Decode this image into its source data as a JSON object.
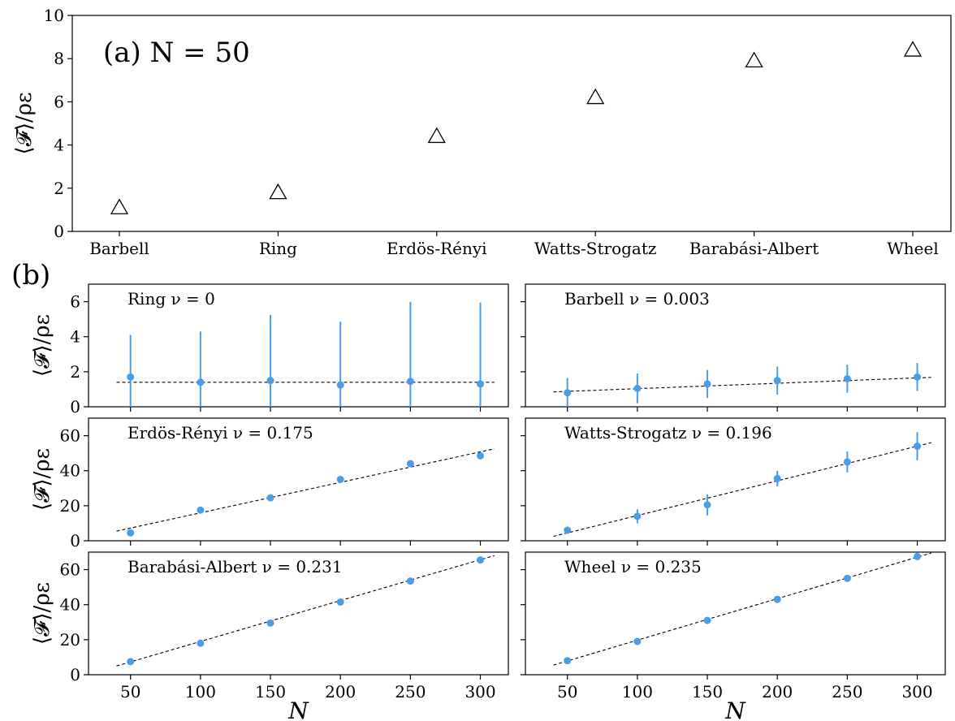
{
  "figure": {
    "panel_b_label": "(b)"
  },
  "chart_data": [
    {
      "id": "a",
      "type": "scatter",
      "annotation": "(a) N = 50",
      "categories": [
        "Barbell",
        "Ring",
        "Erdös-Rényi",
        "Watts-Strogatz",
        "Barabási-Albert",
        "Wheel"
      ],
      "values": [
        1.1,
        1.8,
        4.4,
        6.2,
        7.9,
        8.4
      ],
      "ylabel": "⟨𝓕⟩/ρε",
      "ylim": [
        0,
        10
      ],
      "yticks": [
        0,
        2,
        4,
        6,
        8,
        10
      ],
      "marker": "open-triangle",
      "color": "#000000"
    },
    {
      "id": "b1",
      "type": "scatter",
      "annotation": "Ring ν = 0",
      "x": [
        50,
        100,
        150,
        200,
        250,
        300
      ],
      "y": [
        1.7,
        1.4,
        1.5,
        1.25,
        1.45,
        1.3
      ],
      "yerr": [
        2.4,
        2.9,
        3.75,
        3.6,
        4.55,
        4.65
      ],
      "fit": {
        "x": [
          40,
          310
        ],
        "y": [
          1.4,
          1.4
        ]
      },
      "ylabel": "⟨𝓕⟩/ρε",
      "ylim": [
        0,
        7
      ],
      "yticks": [
        0,
        2,
        4,
        6
      ],
      "xlim": [
        20,
        320
      ],
      "xticks": [
        50,
        100,
        150,
        200,
        250,
        300
      ],
      "color": "#4a9de8"
    },
    {
      "id": "b2",
      "type": "scatter",
      "annotation": "Barbell ν = 0.003",
      "x": [
        50,
        100,
        150,
        200,
        250,
        300
      ],
      "y": [
        0.8,
        1.05,
        1.3,
        1.5,
        1.6,
        1.7
      ],
      "yerr": [
        0.85,
        0.85,
        0.8,
        0.8,
        0.8,
        0.8
      ],
      "fit": {
        "x": [
          40,
          310
        ],
        "y": [
          0.85,
          1.68
        ]
      },
      "ylim": [
        0,
        7
      ],
      "yticks": [
        0,
        2,
        4,
        6
      ],
      "xlim": [
        20,
        320
      ],
      "xticks": [
        50,
        100,
        150,
        200,
        250,
        300
      ],
      "color": "#4a9de8"
    },
    {
      "id": "b3",
      "type": "scatter",
      "annotation": "Erdös-Rényi ν = 0.175",
      "x": [
        50,
        100,
        150,
        200,
        250,
        300
      ],
      "y": [
        4.5,
        17.5,
        24.5,
        35,
        44,
        48.5
      ],
      "yerr": [
        1,
        1,
        1,
        1,
        1,
        1
      ],
      "fit": {
        "x": [
          40,
          310
        ],
        "y": [
          5.5,
          52.5
        ]
      },
      "ylabel": "⟨𝓕⟩/ρε",
      "ylim": [
        0,
        70
      ],
      "yticks": [
        0,
        20,
        40,
        60
      ],
      "xlim": [
        20,
        320
      ],
      "xticks": [
        50,
        100,
        150,
        200,
        250,
        300
      ],
      "color": "#4a9de8"
    },
    {
      "id": "b4",
      "type": "scatter",
      "annotation": "Watts-Strogatz ν = 0.196",
      "x": [
        50,
        100,
        150,
        200,
        250,
        300
      ],
      "y": [
        6,
        14,
        20.5,
        35.5,
        45,
        54
      ],
      "yerr": [
        2,
        4,
        6,
        4.5,
        6,
        8
      ],
      "fit": {
        "x": [
          40,
          310
        ],
        "y": [
          2.5,
          56
        ]
      },
      "ylim": [
        0,
        70
      ],
      "yticks": [
        0,
        20,
        40,
        60
      ],
      "xlim": [
        20,
        320
      ],
      "xticks": [
        50,
        100,
        150,
        200,
        250,
        300
      ],
      "color": "#4a9de8"
    },
    {
      "id": "b5",
      "type": "scatter",
      "annotation": "Barabási-Albert ν = 0.231",
      "x": [
        50,
        100,
        150,
        200,
        250,
        300
      ],
      "y": [
        7.5,
        18,
        29.5,
        41.5,
        53.5,
        65.5
      ],
      "yerr": [
        0.8,
        0.8,
        0.8,
        0.8,
        0.8,
        0.8
      ],
      "fit": {
        "x": [
          40,
          310
        ],
        "y": [
          5,
          68
        ]
      },
      "ylabel": "⟨𝓕⟩/ρε",
      "xlabel": "N",
      "ylim": [
        0,
        70
      ],
      "yticks": [
        0,
        20,
        40,
        60
      ],
      "xlim": [
        20,
        320
      ],
      "xticks": [
        50,
        100,
        150,
        200,
        250,
        300
      ],
      "color": "#4a9de8"
    },
    {
      "id": "b6",
      "type": "scatter",
      "annotation": "Wheel ν = 0.235",
      "x": [
        50,
        100,
        150,
        200,
        250,
        300
      ],
      "y": [
        8,
        19,
        31,
        43,
        55,
        67.5
      ],
      "yerr": [
        0.8,
        0.8,
        0.8,
        0.8,
        0.8,
        0.8
      ],
      "fit": {
        "x": [
          40,
          310
        ],
        "y": [
          5.5,
          69.5
        ]
      },
      "xlabel": "N",
      "ylim": [
        0,
        70
      ],
      "yticks": [
        0,
        20,
        40,
        60
      ],
      "xlim": [
        20,
        320
      ],
      "xticks": [
        50,
        100,
        150,
        200,
        250,
        300
      ],
      "color": "#4a9de8"
    }
  ]
}
